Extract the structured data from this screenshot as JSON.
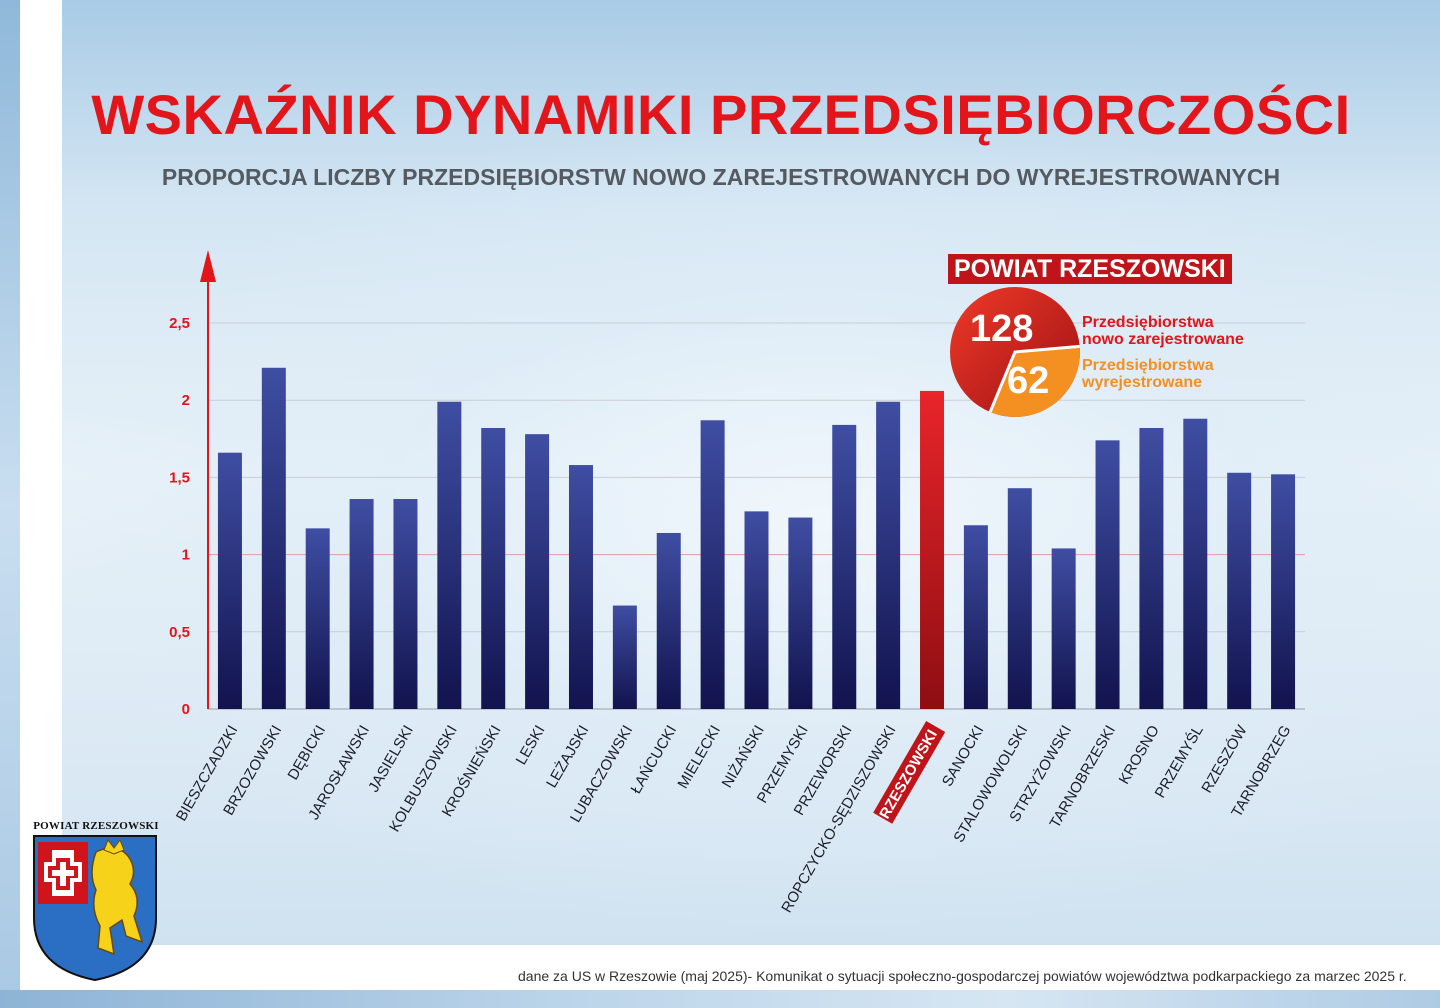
{
  "title": "WSKAŹNIK DYNAMIKI PRZEDSIĘBIORCZOŚCI",
  "subtitle": "PROPORCJA LICZBY PRZEDSIĘBIORSTW NOWO ZAREJESTROWANYCH DO WYREJESTROWANYCH",
  "colors": {
    "title": "#e2151b",
    "bar": "#343d92",
    "bar_highlight": "#e2151b",
    "pie_new": "#e2151b",
    "pie_removed": "#f39021",
    "axis": "#e2151b"
  },
  "highlight": {
    "district": "RZESZOWSKI",
    "label": "POWIAT RZESZOWSKI",
    "registered_value": "128",
    "registered_label_line1": "Przedsiębiorstwa",
    "registered_label_line2": "nowo zarejestrowane",
    "deregistered_value": "62",
    "deregistered_label_line1": "Przedsiębiorstwa",
    "deregistered_label_line2": "wyrejestrowane",
    "pie_values": [
      128,
      62
    ]
  },
  "chart_data": {
    "type": "bar",
    "title": "WSKAŹNIK DYNAMIKI PRZEDSIĘBIORCZOŚCI",
    "subtitle": "PROPORCJA LICZBY PRZEDSIĘBIORSTW NOWO ZAREJESTROWANYCH DO WYREJESTROWANYCH",
    "categories": [
      "BIESZCZADZKI",
      "BRZOZOWSKI",
      "DĘBICKI",
      "JAROSŁAWSKI",
      "JASIELSKI",
      "KOLBUSZOWSKI",
      "KROŚNIEŃSKI",
      "LESKI",
      "LEŻAJSKI",
      "LUBACZOWSKI",
      "ŁAŃCUCKI",
      "MIELECKI",
      "NIŻAŃSKI",
      "PRZEMYSKI",
      "PRZEWORSKI",
      "ROPCZYCKO-SĘDZISZOWSKI",
      "RZESZOWSKI",
      "SANOCKI",
      "STALOWOWOLSKI",
      "STRZYŻOWSKI",
      "TARNOBRZESKI",
      "KROSNO",
      "PRZEMYŚL",
      "RZESZÓW",
      "TARNOBRZEG"
    ],
    "values": [
      1.66,
      2.21,
      1.17,
      1.36,
      1.36,
      1.99,
      1.82,
      1.78,
      1.58,
      0.67,
      1.14,
      1.87,
      1.28,
      1.24,
      1.84,
      1.99,
      2.06,
      1.19,
      1.43,
      1.04,
      1.74,
      1.82,
      1.88,
      1.53,
      1.52
    ],
    "highlighted_category": "RZESZOWSKI",
    "ylim": [
      0,
      2.5
    ],
    "yticks": [
      "0",
      "0,5",
      "1",
      "1,5",
      "2",
      "2,5"
    ],
    "ytick_values": [
      0,
      0.5,
      1,
      1.5,
      2,
      2.5
    ],
    "xlabel": "",
    "ylabel": "",
    "grid": true
  },
  "footnote": "dane za US w Rzeszowie (maj 2025)- Komunikat o sytuacji społeczno-gospodarczej powiatów województwa podkarpackiego za marzec 2025 r.",
  "logo": {
    "label": "POWIAT  RZESZOWSKI"
  }
}
